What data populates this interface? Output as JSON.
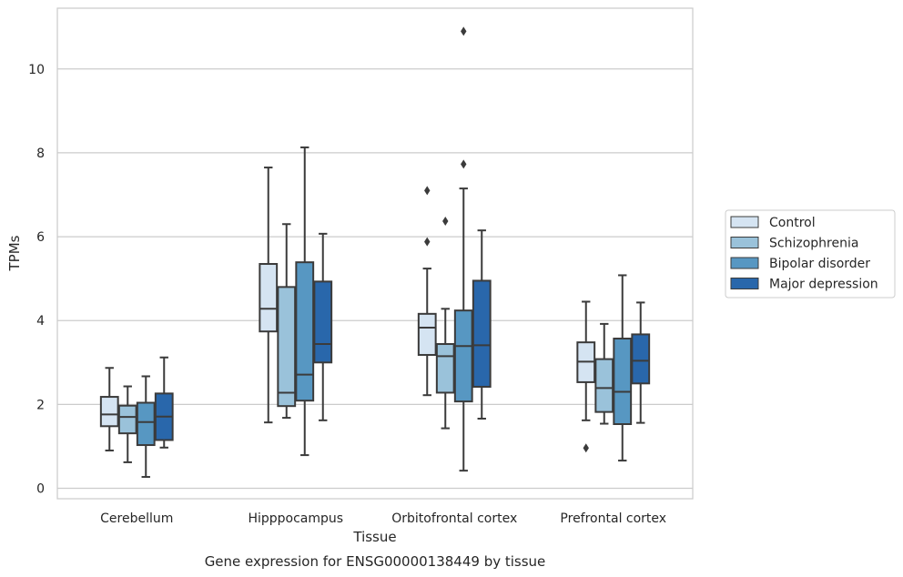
{
  "caption": "Gene expression for ENSG00000138449 by tissue",
  "chart_data": {
    "type": "box",
    "xlabel": "Tissue",
    "ylabel": "TPMs",
    "ylim": [
      -0.25,
      11.45
    ],
    "yticks": [
      0,
      2,
      4,
      6,
      8,
      10
    ],
    "grid": "horizontal",
    "legend_position": "right",
    "categories": [
      "Cerebellum",
      "Hipppocampus",
      "Orbitofrontal cortex",
      "Prefrontal cortex"
    ],
    "series": [
      {
        "name": "Control",
        "color": "#d5e4f2",
        "boxes": [
          {
            "min": 0.9,
            "q1": 1.48,
            "median": 1.76,
            "q3": 2.18,
            "max": 2.87,
            "outliers": []
          },
          {
            "min": 1.57,
            "q1": 3.74,
            "median": 4.28,
            "q3": 5.35,
            "max": 7.65,
            "outliers": []
          },
          {
            "min": 2.22,
            "q1": 3.18,
            "median": 3.83,
            "q3": 4.16,
            "max": 5.24,
            "outliers": [
              5.88,
              7.1
            ]
          },
          {
            "min": 1.62,
            "q1": 2.53,
            "median": 3.02,
            "q3": 3.48,
            "max": 4.45,
            "outliers": [
              0.96
            ]
          }
        ]
      },
      {
        "name": "Schizophrenia",
        "color": "#9ac2da",
        "boxes": [
          {
            "min": 0.62,
            "q1": 1.31,
            "median": 1.7,
            "q3": 1.97,
            "max": 2.43,
            "outliers": []
          },
          {
            "min": 1.68,
            "q1": 1.96,
            "median": 2.28,
            "q3": 4.8,
            "max": 6.3,
            "outliers": []
          },
          {
            "min": 1.43,
            "q1": 2.28,
            "median": 3.15,
            "q3": 3.44,
            "max": 4.28,
            "outliers": [
              6.37
            ]
          },
          {
            "min": 1.54,
            "q1": 1.82,
            "median": 2.39,
            "q3": 3.08,
            "max": 3.92,
            "outliers": []
          }
        ]
      },
      {
        "name": "Bipolar disorder",
        "color": "#5797c2",
        "boxes": [
          {
            "min": 0.27,
            "q1": 1.03,
            "median": 1.58,
            "q3": 2.04,
            "max": 2.67,
            "outliers": []
          },
          {
            "min": 0.79,
            "q1": 2.09,
            "median": 2.71,
            "q3": 5.39,
            "max": 8.13,
            "outliers": []
          },
          {
            "min": 0.42,
            "q1": 2.07,
            "median": 3.39,
            "q3": 4.24,
            "max": 7.15,
            "outliers": [
              7.73,
              10.9
            ]
          },
          {
            "min": 0.66,
            "q1": 1.53,
            "median": 2.3,
            "q3": 3.57,
            "max": 5.08,
            "outliers": []
          }
        ]
      },
      {
        "name": "Major depression",
        "color": "#2967ab",
        "boxes": [
          {
            "min": 0.97,
            "q1": 1.15,
            "median": 1.71,
            "q3": 2.26,
            "max": 3.12,
            "outliers": []
          },
          {
            "min": 1.62,
            "q1": 3.0,
            "median": 3.44,
            "q3": 4.93,
            "max": 6.07,
            "outliers": []
          },
          {
            "min": 1.66,
            "q1": 2.42,
            "median": 3.41,
            "q3": 4.95,
            "max": 6.15,
            "outliers": []
          },
          {
            "min": 1.56,
            "q1": 2.5,
            "median": 3.04,
            "q3": 3.67,
            "max": 4.43,
            "outliers": []
          }
        ]
      }
    ]
  }
}
